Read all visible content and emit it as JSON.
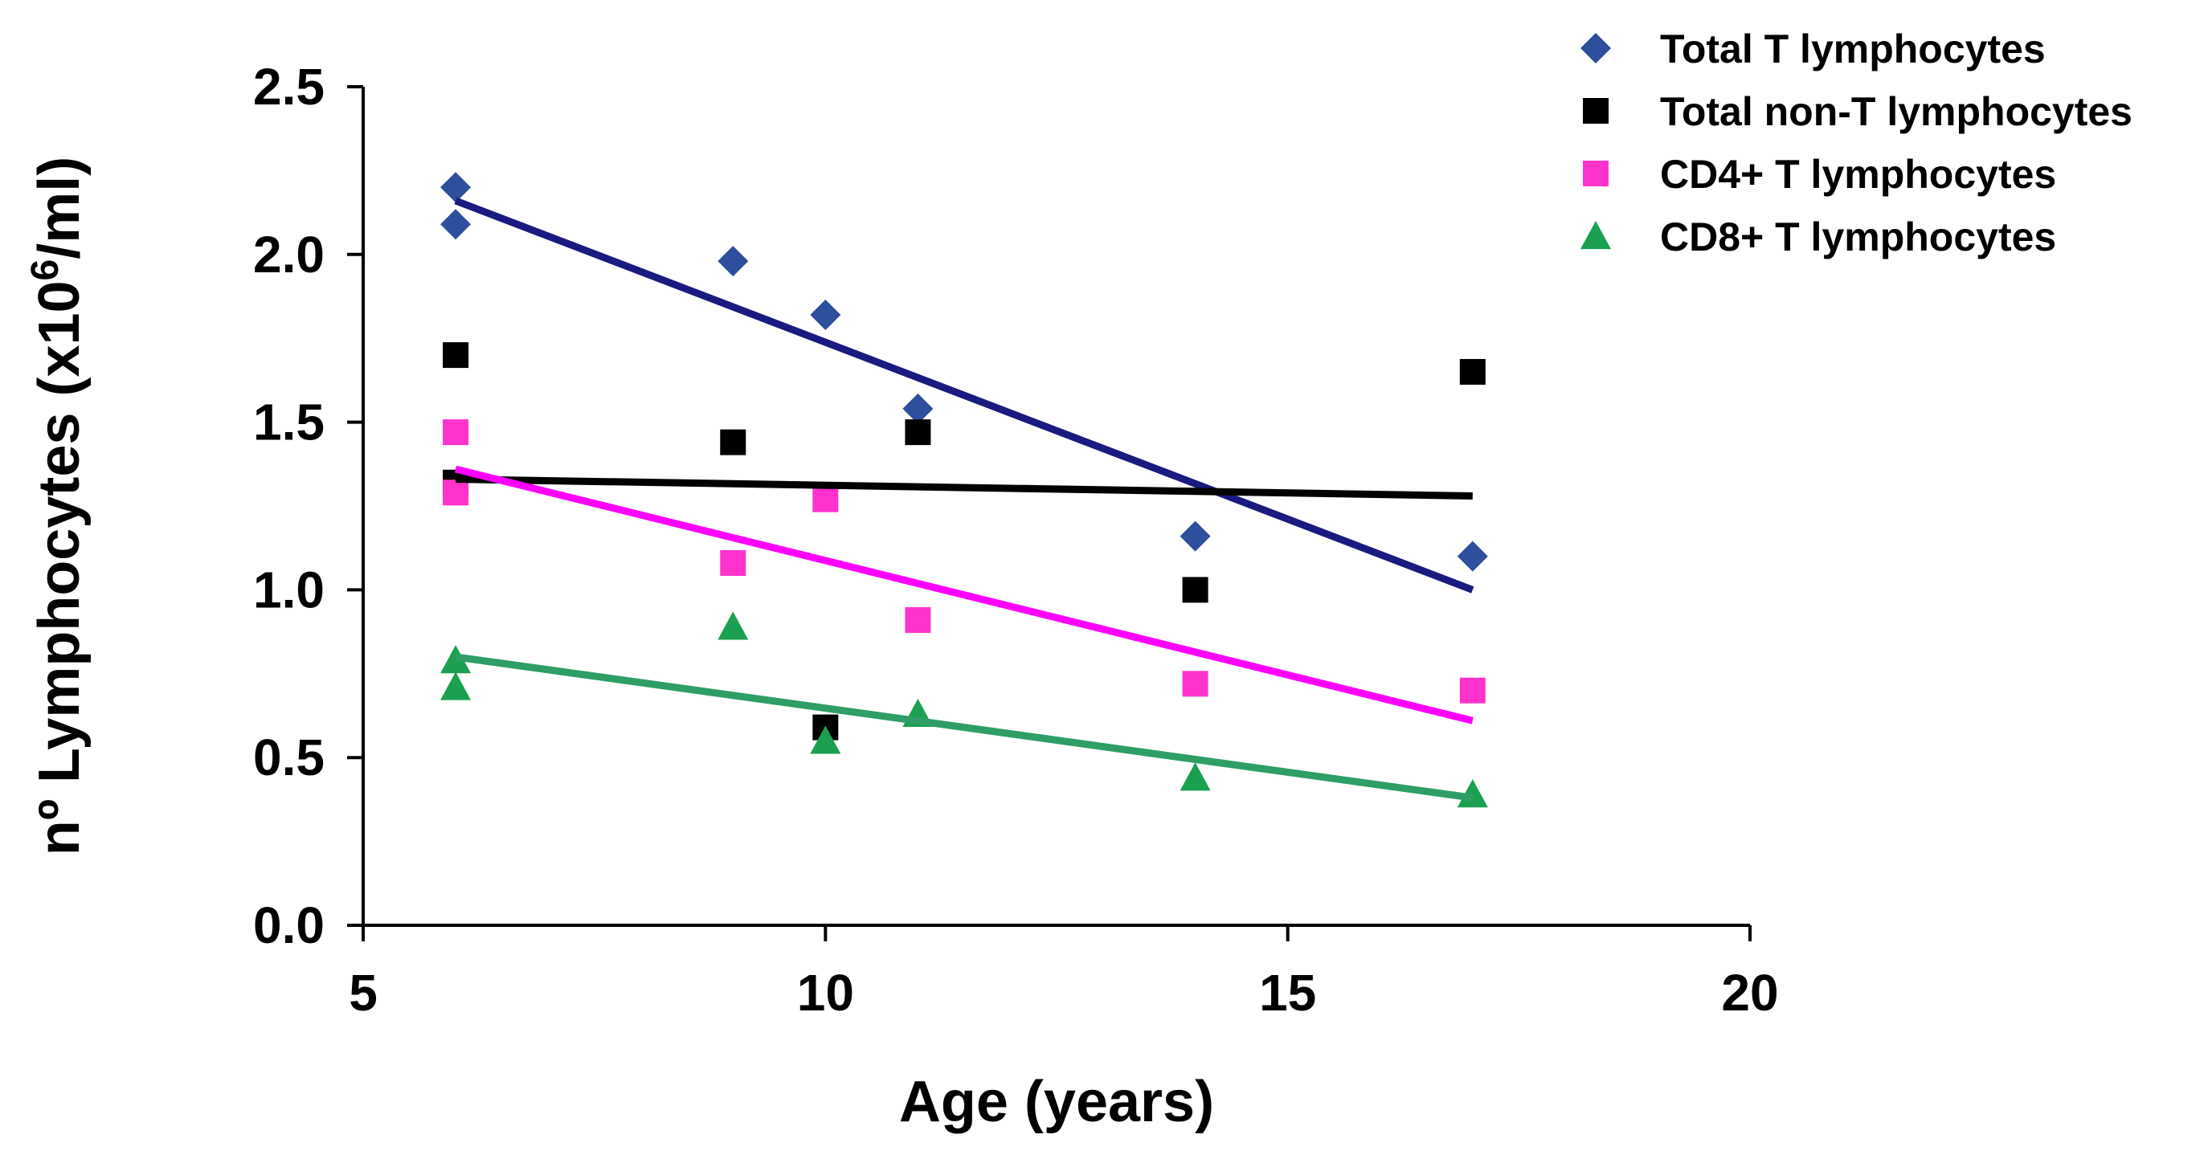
{
  "chart_data": {
    "type": "scatter",
    "title": "",
    "xlabel": "Age (years)",
    "ylabel_main": "nº Lymphocytes (x10",
    "ylabel_sup": "6",
    "ylabel_end": "/ml)",
    "xlim": [
      5,
      20
    ],
    "ylim": [
      0,
      2.5
    ],
    "xticks": [
      5,
      10,
      15,
      20
    ],
    "xtick_labels": [
      "5",
      "10",
      "15",
      "20"
    ],
    "yticks": [
      0,
      0.5,
      1,
      1.5,
      2,
      2.5
    ],
    "ytick_labels": [
      "0.0",
      "0.5",
      "1.0",
      "1.5",
      "2.0",
      "2.5"
    ],
    "grid": false,
    "legend_position": "top-right",
    "series": [
      {
        "name": "Total T lymphocytes",
        "marker": "diamond",
        "color": "#2E4E9E",
        "line_color": "#1A1A80",
        "points": [
          [
            6,
            2.2
          ],
          [
            6,
            2.09
          ],
          [
            9,
            1.98
          ],
          [
            10,
            1.82
          ],
          [
            11,
            1.54
          ],
          [
            14,
            1.16
          ],
          [
            17,
            1.1
          ]
        ],
        "trend": [
          [
            6,
            2.16
          ],
          [
            17,
            1.0
          ]
        ]
      },
      {
        "name": "Total non-T lymphocytes",
        "marker": "square",
        "color": "#000000",
        "line_color": "#000000",
        "points": [
          [
            6,
            1.7
          ],
          [
            6,
            1.32
          ],
          [
            9,
            1.44
          ],
          [
            10,
            0.59
          ],
          [
            11,
            1.47
          ],
          [
            14,
            1.0
          ],
          [
            17,
            1.65
          ]
        ],
        "trend": [
          [
            6,
            1.33
          ],
          [
            17,
            1.28
          ]
        ]
      },
      {
        "name": "CD4+ T lymphocytes",
        "marker": "square",
        "color": "#FF33CC",
        "line_color": "#FF00FF",
        "points": [
          [
            6,
            1.47
          ],
          [
            6,
            1.29
          ],
          [
            9,
            1.08
          ],
          [
            10,
            1.27
          ],
          [
            11,
            0.91
          ],
          [
            14,
            0.72
          ],
          [
            17,
            0.7
          ]
        ],
        "trend": [
          [
            6,
            1.36
          ],
          [
            17,
            0.61
          ]
        ]
      },
      {
        "name": "CD8+ T lymphocytes",
        "marker": "triangle",
        "color": "#1AA050",
        "line_color": "#2E9E66",
        "points": [
          [
            6,
            0.79
          ],
          [
            6,
            0.71
          ],
          [
            9,
            0.89
          ],
          [
            10,
            0.55
          ],
          [
            11,
            0.63
          ],
          [
            14,
            0.44
          ],
          [
            17,
            0.39
          ]
        ],
        "trend": [
          [
            6,
            0.8
          ],
          [
            17,
            0.38
          ]
        ]
      }
    ]
  }
}
